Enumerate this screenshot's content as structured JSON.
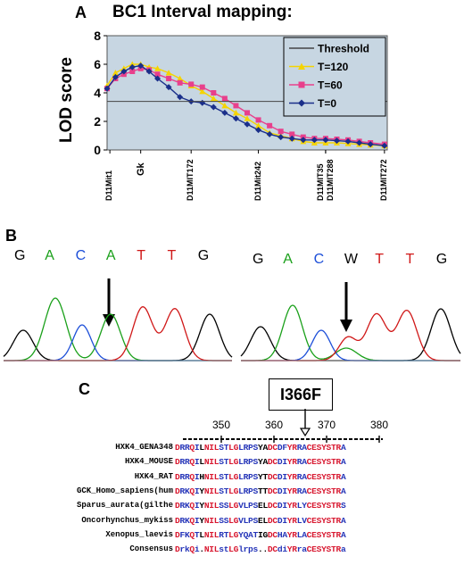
{
  "panel_a": {
    "letter": "A",
    "chart_data": {
      "type": "line",
      "title": "BC1 Interval mapping:",
      "ylabel": "LOD score",
      "ylim": [
        0,
        8
      ],
      "yticks": [
        0,
        2,
        4,
        6,
        8
      ],
      "xlim": [
        0,
        100
      ],
      "grid": false,
      "legend_placement": "top-right",
      "threshold": {
        "name": "Threshold",
        "value": 3.4,
        "color": "#444444"
      },
      "markers": [
        "D11Mit1",
        "Gk",
        "D11MIT172",
        "D11Mit242",
        "D11MIT35",
        "D11MIT288",
        "D11MIT272"
      ],
      "marker_x": [
        1,
        12,
        30,
        54,
        78,
        78,
        99
      ],
      "series": [
        {
          "name": "T=120",
          "color": "#f5d400",
          "x": [
            0,
            3,
            6,
            9,
            12,
            15,
            18,
            22,
            26,
            30,
            34,
            38,
            42,
            46,
            50,
            54,
            58,
            62,
            66,
            70,
            74,
            78,
            82,
            86,
            90,
            94,
            99
          ],
          "y": [
            4.5,
            5.4,
            5.7,
            6.0,
            6.0,
            5.8,
            5.7,
            5.4,
            5.0,
            4.5,
            4.1,
            3.6,
            3.1,
            2.6,
            2.2,
            1.7,
            1.2,
            1.0,
            0.8,
            0.6,
            0.5,
            0.5,
            0.5,
            0.45,
            0.4,
            0.35,
            0.3
          ]
        },
        {
          "name": "T=60",
          "color": "#e8408c",
          "x": [
            0,
            3,
            6,
            9,
            12,
            15,
            18,
            22,
            26,
            30,
            34,
            38,
            42,
            46,
            50,
            54,
            58,
            62,
            66,
            70,
            74,
            78,
            82,
            86,
            90,
            94,
            99
          ],
          "y": [
            4.3,
            5.0,
            5.3,
            5.5,
            5.7,
            5.6,
            5.3,
            5.0,
            4.7,
            4.6,
            4.4,
            4.0,
            3.6,
            3.1,
            2.6,
            2.1,
            1.7,
            1.3,
            1.1,
            0.9,
            0.8,
            0.8,
            0.75,
            0.7,
            0.6,
            0.5,
            0.4
          ]
        },
        {
          "name": "T=0",
          "color": "#1a2f8a",
          "x": [
            0,
            3,
            6,
            9,
            12,
            15,
            18,
            22,
            26,
            30,
            34,
            38,
            42,
            46,
            50,
            54,
            58,
            62,
            66,
            70,
            74,
            78,
            82,
            86,
            90,
            94,
            99
          ],
          "y": [
            4.3,
            5.1,
            5.5,
            5.8,
            5.9,
            5.5,
            5.0,
            4.4,
            3.7,
            3.4,
            3.3,
            3.0,
            2.6,
            2.2,
            1.8,
            1.4,
            1.1,
            0.9,
            0.8,
            0.7,
            0.7,
            0.7,
            0.65,
            0.6,
            0.5,
            0.4,
            0.3
          ]
        }
      ]
    },
    "colors": {
      "plot_bg": "#c7d6e2",
      "frame": "#555555"
    }
  },
  "panel_b": {
    "letter": "B",
    "left_bases": [
      "G",
      "A",
      "C",
      "A",
      "T",
      "T",
      "G"
    ],
    "right_bases": [
      "G",
      "A",
      "C",
      "W",
      "T",
      "T",
      "G"
    ],
    "base_colors": {
      "G": "#000000",
      "A": "#1aa01a",
      "C": "#1d4fd8",
      "T": "#d01818",
      "W": "#000000"
    }
  },
  "panel_c": {
    "letter": "C",
    "mutation_label": "I366F",
    "ruler_ticks": [
      "350",
      "360",
      "370",
      "380"
    ],
    "rows": [
      {
        "name": "HXK4_GENA348",
        "seq": "DRRQILNILSTLGLRPSYADCDFYRRACESYSTRA"
      },
      {
        "name": "HXK4_MOUSE",
        "seq": "DRRQILNILSTLGLRPSYADCDIYRRACESYSTRA"
      },
      {
        "name": "HXK4_RAT",
        "seq": "DRRQIHNILSTLGLRPSYTDCDIYRRACESYSTRA"
      },
      {
        "name": "GCK_Homo_sapiens(hum",
        "seq": "DRKQIYNILSTLGLRPSTTDCDIYRRACESYSTRA"
      },
      {
        "name": "Sparus_aurata(gilthe",
        "seq": "DRKQIYNILSSLGVLPSELDCDIYRLYCESYSTRS"
      },
      {
        "name": "Oncorhynchus_mykiss",
        "seq": "DRKQIYNILSSLGVLPSELDCDIYRLVCESYSTRA"
      },
      {
        "name": "Xenopus_laevis",
        "seq": "DFKQTLNILRTLGYQATIGDCHAYRLACESYSTRA"
      },
      {
        "name": "Consensus",
        "seq": "DrkQi.NILstLGlrps..DCdiYRraCESYSTRa"
      }
    ],
    "colors": {
      "conserved": "#d81830",
      "variable": "#2434b8",
      "other": "#000000"
    }
  }
}
